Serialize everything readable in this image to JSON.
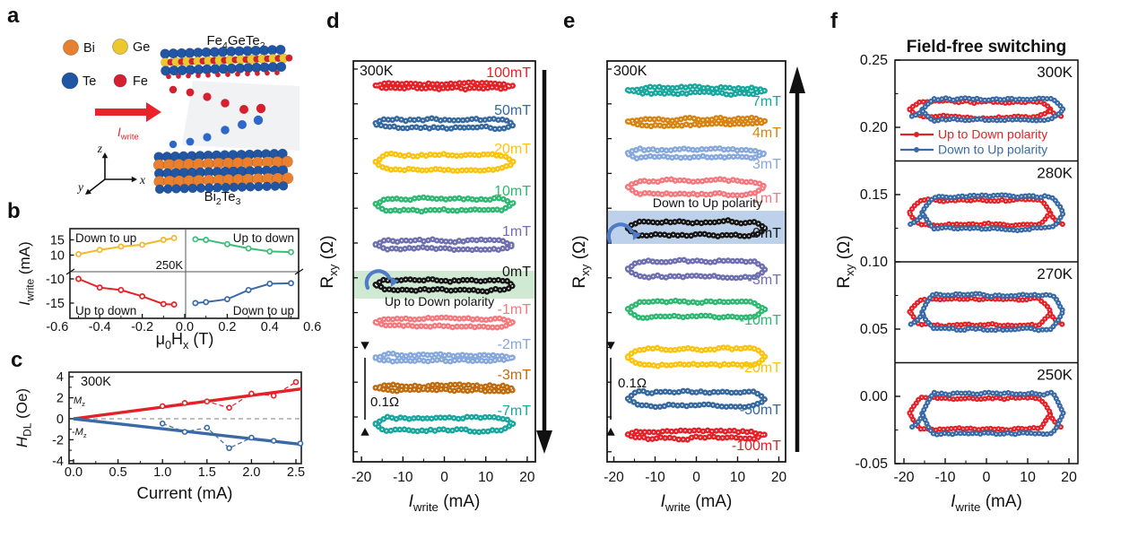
{
  "panel_letters": {
    "a": "a",
    "b": "b",
    "c": "c",
    "d": "d",
    "e": "e",
    "f": "f"
  },
  "panel_a": {
    "legend": [
      {
        "element": "Bi",
        "color": "#e8802f"
      },
      {
        "element": "Ge",
        "color": "#ecc72e"
      },
      {
        "element": "Te",
        "color": "#2156a5"
      },
      {
        "element": "Fe",
        "color": "#d6202f"
      }
    ],
    "top_material_parts": [
      {
        "t": "Fe"
      },
      {
        "t": "4",
        "sub": true
      },
      {
        "t": "GeTe"
      },
      {
        "t": "2",
        "sub": true
      }
    ],
    "bottom_material_parts": [
      {
        "t": "Bi"
      },
      {
        "t": "2",
        "sub": true
      },
      {
        "t": "Te"
      },
      {
        "t": "3",
        "sub": true
      }
    ],
    "current_label_parts": [
      {
        "t": "I",
        "i": true
      },
      {
        "t": "write",
        "sub": true
      }
    ],
    "current_color": "#e8232a",
    "axis_labels": {
      "x": "x",
      "y": "y",
      "z": "z"
    },
    "mid_red_color": "#d6202f",
    "mid_blue_color": "#2e66c9"
  },
  "chart_data": [
    {
      "id": "b",
      "type": "line",
      "temperature": "250K",
      "ylabel_parts": [
        {
          "t": "I",
          "i": true
        },
        {
          "t": "write",
          "sub": true
        },
        {
          "t": " (mA)"
        }
      ],
      "xlabel_parts": [
        {
          "t": "μ"
        },
        {
          "t": "0",
          "sub": true
        },
        {
          "t": "H"
        },
        {
          "t": "x",
          "sub": true
        },
        {
          "t": " (T)"
        }
      ],
      "yticks": [
        "15",
        "10",
        "-10",
        "-15"
      ],
      "xticks": [
        "-0.6",
        "-0.4",
        "-0.2",
        "0.0",
        "0.2",
        "0.4",
        "0.6"
      ],
      "series": [
        {
          "name": "Down to up (+I)",
          "quadrant_label": "Down to up",
          "corner": "tl",
          "color": "#f3b82a",
          "x": [
            -0.5,
            -0.4,
            -0.3,
            -0.2,
            -0.1,
            -0.05
          ],
          "y": [
            10.3,
            11.7,
            12.8,
            13.4,
            15.0,
            15.6
          ]
        },
        {
          "name": "Up to down (+I)",
          "quadrant_label": "Up to down",
          "corner": "tr",
          "color": "#3dbd78",
          "x": [
            0.05,
            0.1,
            0.2,
            0.3,
            0.4,
            0.5
          ],
          "y": [
            15.2,
            15.0,
            13.6,
            12.2,
            11.2,
            11.0
          ]
        },
        {
          "name": "Up to down (-I)",
          "quadrant_label": "Up to down",
          "corner": "bl",
          "color": "#e42127",
          "x": [
            -0.5,
            -0.4,
            -0.3,
            -0.2,
            -0.1,
            -0.05
          ],
          "y": [
            -10.0,
            -11.8,
            -12.3,
            -13.6,
            -15.2,
            -15.3
          ]
        },
        {
          "name": "Down to up (-I)",
          "quadrant_label": "Down to up",
          "corner": "br",
          "color": "#3a6aa5",
          "x": [
            0.05,
            0.1,
            0.2,
            0.3,
            0.4,
            0.5
          ],
          "y": [
            -15.0,
            -14.8,
            -14.2,
            -12.3,
            -11.0,
            -10.9
          ]
        }
      ]
    },
    {
      "id": "c",
      "type": "scatter",
      "temperature": "300K",
      "ylabel_parts": [
        {
          "t": "H",
          "i": true
        },
        {
          "t": "DL",
          "sub": true
        },
        {
          "t": " (Oe)"
        }
      ],
      "xlabel": "Current (mA)",
      "yticks": [
        "4",
        "2",
        "0",
        "-2",
        "-4"
      ],
      "xticks": [
        "0.0",
        "0.5",
        "1.0",
        "1.5",
        "2.0",
        "2.5"
      ],
      "series": [
        {
          "name_parts": [
            {
              "t": "M",
              "i": true
            },
            {
              "t": "z",
              "sub": true
            }
          ],
          "color": "#e42127",
          "fit_x": [
            0,
            2.56
          ],
          "fit_y": [
            0,
            2.85
          ],
          "x": [
            1.0,
            1.25,
            1.5,
            1.75,
            2.0,
            2.25,
            2.5
          ],
          "y": [
            1.2,
            1.5,
            1.65,
            1.05,
            2.4,
            2.2,
            3.5
          ]
        },
        {
          "name_parts": [
            {
              "t": "-"
            },
            {
              "t": "M",
              "i": true
            },
            {
              "t": "z",
              "sub": true
            }
          ],
          "color": "#3a6aa5",
          "fit_x": [
            0,
            2.56
          ],
          "fit_y": [
            0,
            -2.44
          ],
          "x": [
            1.0,
            1.25,
            1.5,
            1.75,
            2.0,
            2.25,
            2.55
          ],
          "y": [
            -0.45,
            -1.25,
            -0.85,
            -2.8,
            -1.8,
            -2.1,
            -2.35
          ]
        }
      ]
    },
    {
      "id": "d",
      "type": "stacked_hysteresis",
      "temperature": "300K",
      "ylabel_parts": [
        {
          "t": "R"
        },
        {
          "t": "xy",
          "sub": true
        },
        {
          "t": " (Ω)"
        }
      ],
      "xlabel_parts": [
        {
          "t": "I",
          "i": true
        },
        {
          "t": "write",
          "sub": true
        },
        {
          "t": " (mA)"
        }
      ],
      "xticks": [
        "-20",
        "-10",
        "0",
        "10",
        "20"
      ],
      "scalebar_label": "0.1Ω",
      "sweep_direction": "down",
      "highlight": {
        "text": "Up to Down polarity",
        "band_color": "#cfe9d2",
        "loop_label": "0mT"
      },
      "loop_current_range_mA": [
        -16.6,
        16.6
      ],
      "loops": [
        {
          "label": "100mT",
          "color": "#e42127"
        },
        {
          "label": "50mT",
          "color": "#35699f"
        },
        {
          "label": "20mT",
          "color": "#fcc30b"
        },
        {
          "label": "10mT",
          "color": "#2eb872"
        },
        {
          "label": "1mT",
          "color": "#6e6fb0"
        },
        {
          "label": "0mT",
          "color": "#161616"
        },
        {
          "label": "-1mT",
          "color": "#f4797f"
        },
        {
          "label": "-2mT",
          "color": "#86a8da"
        },
        {
          "label": "-3mT",
          "color": "#c06c0e"
        },
        {
          "label": "-7mT",
          "color": "#18a79e"
        }
      ]
    },
    {
      "id": "e",
      "type": "stacked_hysteresis",
      "temperature": "300K",
      "ylabel_parts": [
        {
          "t": "R"
        },
        {
          "t": "xy",
          "sub": true
        },
        {
          "t": " (Ω)"
        }
      ],
      "xlabel_parts": [
        {
          "t": "I",
          "i": true
        },
        {
          "t": "write",
          "sub": true
        },
        {
          "t": " (mA)"
        }
      ],
      "xticks": [
        "-20",
        "-10",
        "0",
        "10",
        "20"
      ],
      "scalebar_label": "0.1Ω",
      "sweep_direction": "up",
      "highlight": {
        "text": "Down to Up polarity",
        "band_color": "#bdd2ea",
        "loop_label": "0mT"
      },
      "loop_current_range_mA": [
        -16.6,
        16.6
      ],
      "loops": [
        {
          "label": "7mT",
          "color": "#18a79e"
        },
        {
          "label": "4mT",
          "color": "#d8830f"
        },
        {
          "label": "3mT",
          "color": "#86a8da"
        },
        {
          "label": "1mT",
          "color": "#f4797f"
        },
        {
          "label": "0mT",
          "color": "#161616"
        },
        {
          "label": "-3mT",
          "color": "#6e6fb0"
        },
        {
          "label": "-10mT",
          "color": "#2eb872"
        },
        {
          "label": "-20mT",
          "color": "#fcc30b"
        },
        {
          "label": "-50mT",
          "color": "#35699f"
        },
        {
          "label": "-100mT",
          "color": "#e42127"
        }
      ]
    },
    {
      "id": "f",
      "type": "hysteresis_panels",
      "title": "Field-free switching",
      "ylabel_parts": [
        {
          "t": "R"
        },
        {
          "t": "xy",
          "sub": true
        },
        {
          "t": " (Ω)"
        }
      ],
      "xlabel_parts": [
        {
          "t": "I",
          "i": true
        },
        {
          "t": "write",
          "sub": true
        },
        {
          "t": " (mA)"
        }
      ],
      "yticks": [
        "0.25",
        "0.20",
        "0.15",
        "0.10",
        "0.05",
        "0.00",
        "-0.05"
      ],
      "xticks": [
        "-20",
        "-10",
        "0",
        "10",
        "20"
      ],
      "y_axis_range": [
        0.25,
        -0.05
      ],
      "legend": [
        {
          "label": "Up to Down polarity",
          "color": "#e42127"
        },
        {
          "label": "Down to Up polarity",
          "color": "#3a6aa5"
        }
      ],
      "loop_current_range_mA": [
        -18.6,
        18.6
      ],
      "subpanels": [
        {
          "temperature": "300K",
          "center_ohm": 0.2133,
          "gap_ohm": 0.0133
        },
        {
          "temperature": "280K",
          "center_ohm": 0.1367,
          "gap_ohm": 0.0213
        },
        {
          "temperature": "270K",
          "center_ohm": 0.0627,
          "gap_ohm": 0.0227
        },
        {
          "temperature": "250K",
          "center_ohm": -0.0127,
          "gap_ohm": 0.0267
        }
      ]
    }
  ]
}
